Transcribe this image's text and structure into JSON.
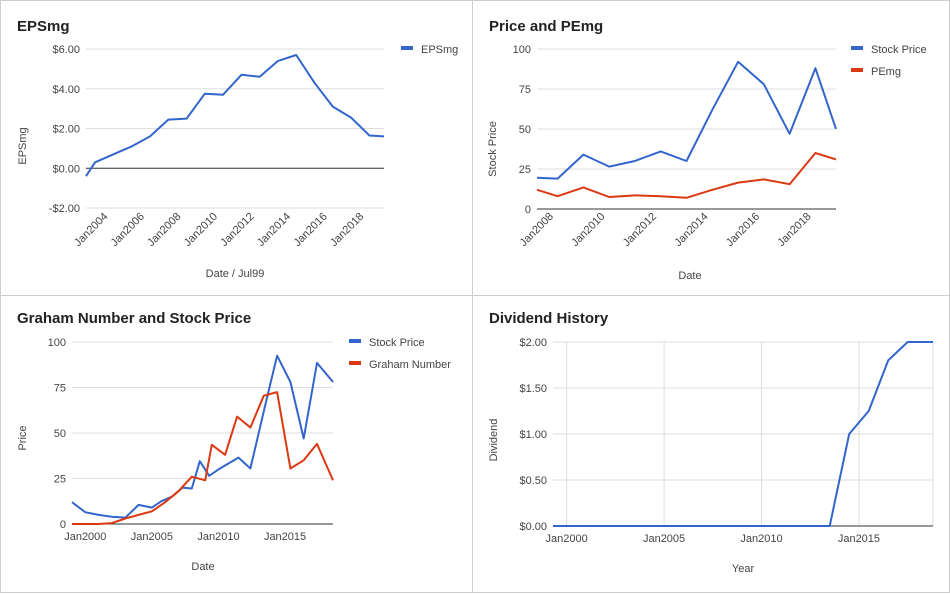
{
  "chart_data": [
    {
      "type": "line",
      "title": "EPSmg",
      "xlabel": "Date / Jul99",
      "ylabel": "EPSmg",
      "x_axis": "date",
      "xlim": [
        2003.0,
        2019.3
      ],
      "ylim": [
        -2,
        6
      ],
      "yticks": [
        -2,
        0,
        2,
        4,
        6
      ],
      "ytick_labels": [
        "-$2.00",
        "$0.00",
        "$2.00",
        "$4.00",
        "$6.00"
      ],
      "xticks": [
        2004,
        2006,
        2008,
        2010,
        2012,
        2014,
        2016,
        2018
      ],
      "xtick_labels": [
        "Jan2004",
        "Jan2006",
        "Jan2008",
        "Jan2010",
        "Jan2012",
        "Jan2014",
        "Jan2016",
        "Jan2018"
      ],
      "zero_line": true,
      "legend": "right",
      "series": [
        {
          "name": "EPSmg",
          "color": "#3366cc",
          "x": [
            2003.0,
            2003.5,
            2004.5,
            2005.5,
            2006.5,
            2007.5,
            2008.5,
            2009.5,
            2010.5,
            2011.5,
            2012.5,
            2013.5,
            2014.5,
            2015.5,
            2016.5,
            2017.5,
            2018.5,
            2019.3
          ],
          "y": [
            -0.4,
            0.3,
            0.7,
            1.1,
            1.6,
            2.45,
            2.5,
            3.75,
            3.7,
            4.7,
            4.6,
            5.4,
            5.7,
            4.3,
            3.1,
            2.55,
            1.65,
            1.6
          ]
        }
      ]
    },
    {
      "type": "line",
      "title": "Price and PEmg",
      "xlabel": "Date",
      "ylabel": "Stock Price",
      "x_axis": "date",
      "xlim": [
        2007.5,
        2019.1
      ],
      "ylim": [
        0,
        100
      ],
      "yticks": [
        0,
        25,
        50,
        75,
        100
      ],
      "ytick_labels": [
        "0",
        "25",
        "50",
        "75",
        "100"
      ],
      "xticks": [
        2008,
        2010,
        2012,
        2014,
        2016,
        2018
      ],
      "xtick_labels": [
        "Jan2008",
        "Jan2010",
        "Jan2012",
        "Jan2014",
        "Jan2016",
        "Jan2018"
      ],
      "legend": "right",
      "series": [
        {
          "name": "Stock Price",
          "color": "#3366cc",
          "x": [
            2007.5,
            2008.3,
            2009.3,
            2010.3,
            2011.3,
            2012.3,
            2013.3,
            2014.3,
            2015.3,
            2016.3,
            2017.3,
            2018.3,
            2019.1
          ],
          "y": [
            19.5,
            19,
            34,
            26.5,
            30,
            36,
            30,
            62,
            92,
            78,
            47,
            88,
            50
          ]
        },
        {
          "name": "PEmg",
          "color": "#dc3912",
          "x": [
            2007.5,
            2008.3,
            2009.3,
            2010.3,
            2011.3,
            2012.3,
            2013.3,
            2014.3,
            2015.3,
            2016.3,
            2017.3,
            2018.3,
            2019.1
          ],
          "y": [
            12,
            8,
            13.5,
            7.5,
            8.5,
            8,
            7,
            12,
            16.5,
            18.5,
            15.5,
            35,
            31
          ]
        }
      ]
    },
    {
      "type": "line",
      "title": "Graham Number and Stock Price",
      "xlabel": "Date",
      "ylabel": "Price",
      "x_axis": "date",
      "xlim": [
        1999.0,
        2018.6
      ],
      "ylim": [
        0,
        100
      ],
      "yticks": [
        0,
        25,
        50,
        75,
        100
      ],
      "ytick_labels": [
        "0",
        "25",
        "50",
        "75",
        "100"
      ],
      "xticks": [
        2000,
        2005,
        2010,
        2015
      ],
      "xtick_labels": [
        "Jan2000",
        "Jan2005",
        "Jan2010",
        "Jan2015"
      ],
      "legend": "right",
      "series": [
        {
          "name": "Stock Price",
          "color": "#3366cc",
          "x": [
            1999.0,
            2000.0,
            2001.0,
            2002.0,
            2003.0,
            2004.0,
            2005.0,
            2005.7,
            2006.5,
            2007.3,
            2008.0,
            2008.6,
            2009.3,
            2010.0,
            2010.7,
            2011.5,
            2012.4,
            2013.4,
            2014.4,
            2015.4,
            2016.4,
            2017.4,
            2018.6
          ],
          "y": [
            12,
            6.5,
            5,
            4,
            3.5,
            10.5,
            9,
            12.5,
            15,
            20,
            19.5,
            34.5,
            26.5,
            30,
            33,
            36.5,
            30.5,
            62,
            92.5,
            78,
            47,
            88.5,
            78
          ]
        },
        {
          "name": "Graham Number",
          "color": "#dc3912",
          "x": [
            1999.0,
            2001.0,
            2002.0,
            2003.0,
            2004.0,
            2005.0,
            2006.0,
            2007.0,
            2008.0,
            2009.0,
            2009.5,
            2010.5,
            2011.4,
            2012.4,
            2013.4,
            2014.4,
            2015.4,
            2016.4,
            2017.4,
            2018.6
          ],
          "y": [
            0,
            0,
            0.5,
            3,
            5,
            7,
            12,
            18,
            26,
            24,
            43.5,
            38,
            59,
            53,
            70.5,
            72.5,
            30.5,
            35,
            44,
            24
          ]
        }
      ]
    },
    {
      "type": "line",
      "title": "Dividend History",
      "xlabel": "Year",
      "ylabel": "Dividend",
      "x_axis": "date",
      "xlim": [
        1999.3,
        2018.8
      ],
      "ylim": [
        0,
        2
      ],
      "yticks": [
        0,
        0.5,
        1,
        1.5,
        2
      ],
      "ytick_labels": [
        "$0.00",
        "$0.50",
        "$1.00",
        "$1.50",
        "$2.00"
      ],
      "xticks": [
        2000,
        2005,
        2010,
        2015
      ],
      "xtick_labels": [
        "Jan2000",
        "Jan2005",
        "Jan2010",
        "Jan2015"
      ],
      "vertical_grid": true,
      "series": [
        {
          "color": "#3366cc",
          "x": [
            1999.3,
            2013.5,
            2014.5,
            2015.5,
            2016.5,
            2017.5,
            2018.8
          ],
          "y": [
            0,
            0,
            1.0,
            1.25,
            1.8,
            2.0,
            2.0
          ]
        }
      ]
    }
  ]
}
